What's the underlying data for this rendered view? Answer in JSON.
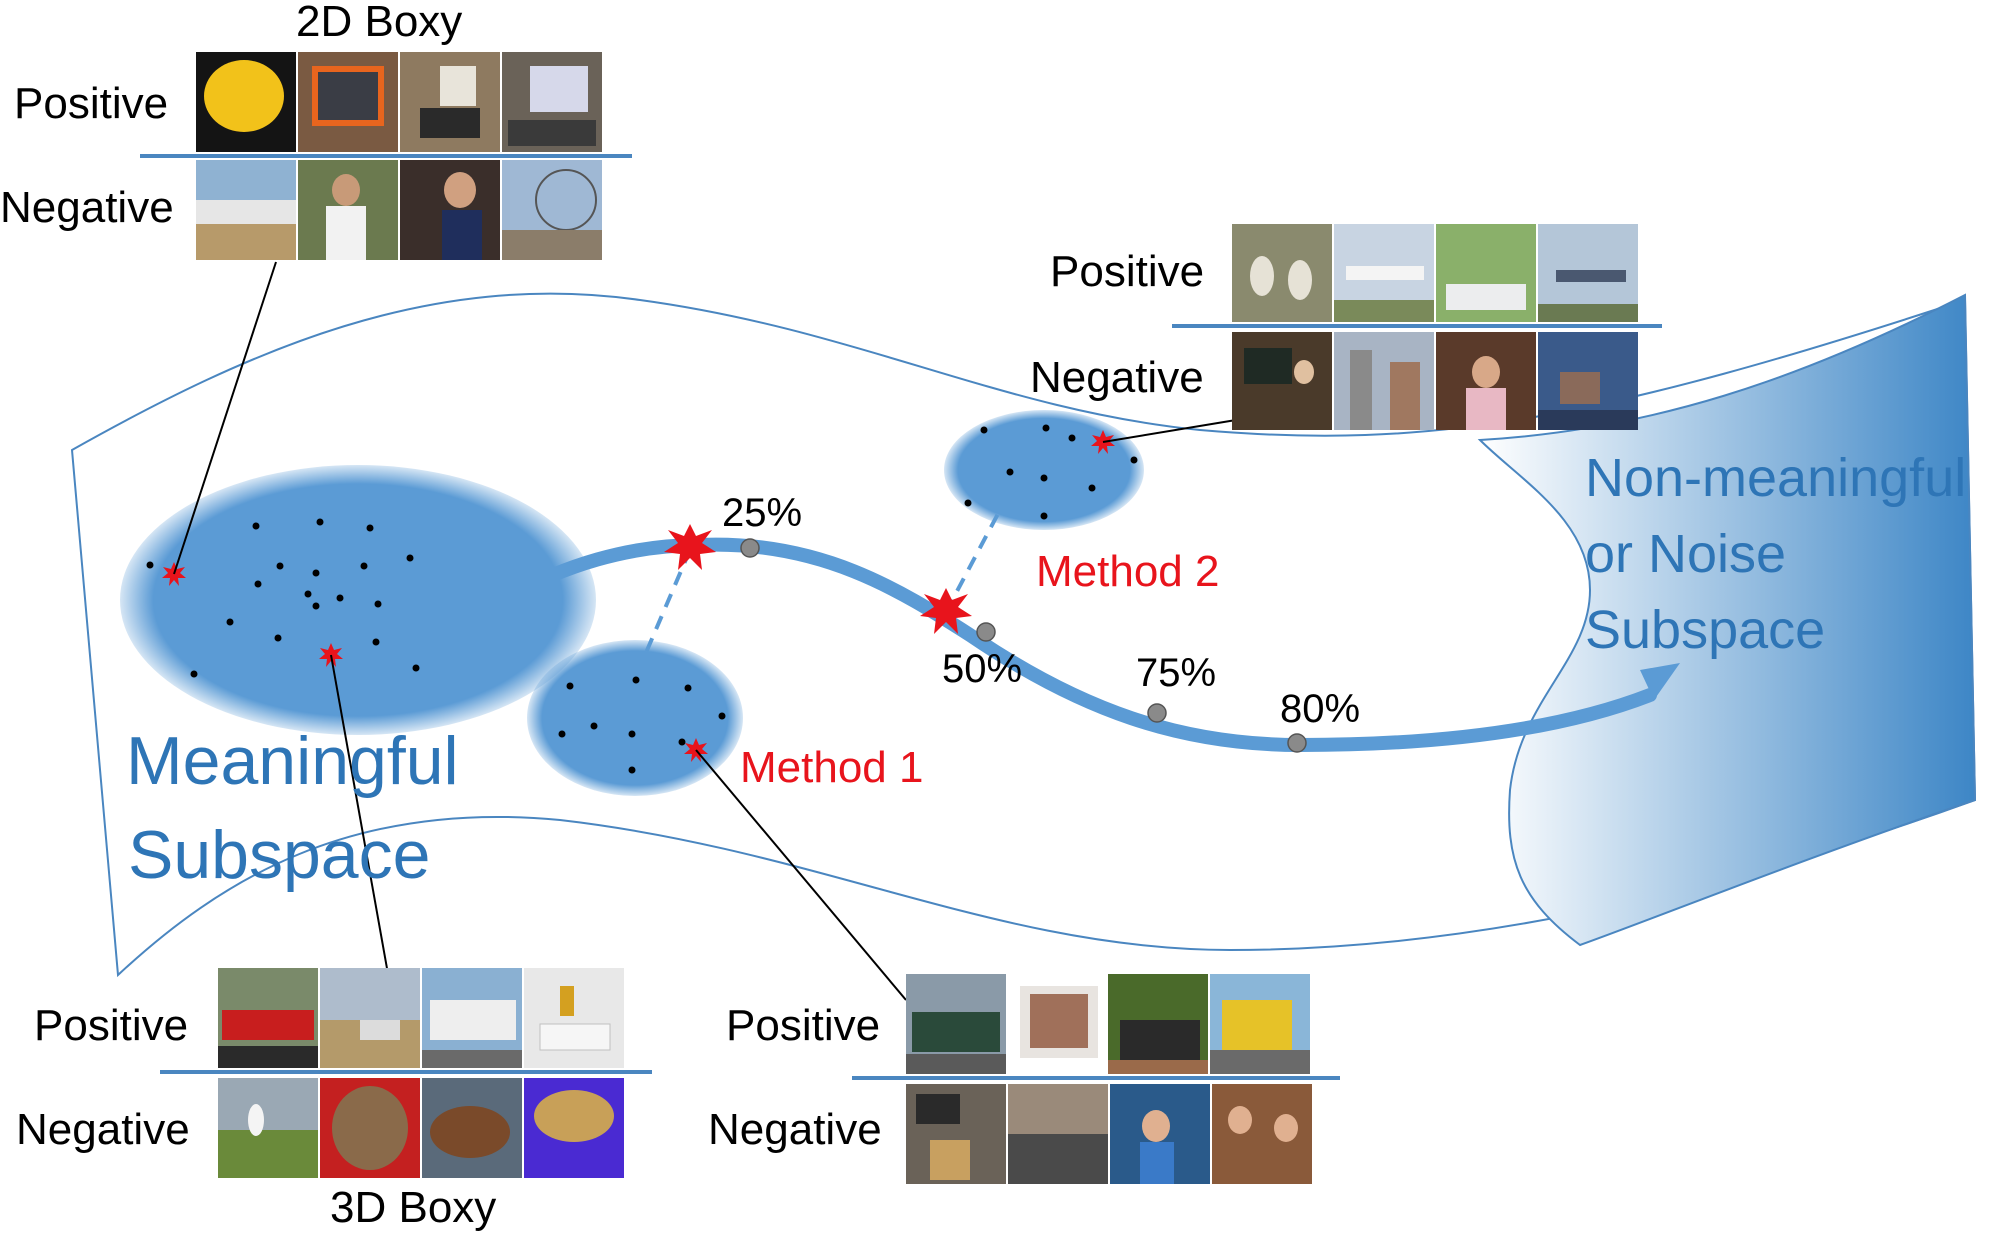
{
  "labels": {
    "meaningful_line1": "Meaningful",
    "meaningful_line2": "Subspace",
    "noise_line1": "Non-meaningful",
    "noise_line2": "or Noise",
    "noise_line3": "Subspace",
    "method1": "Method 1",
    "method2": "Method 2",
    "pct25": "25%",
    "pct50": "50%",
    "pct75": "75%",
    "pct80": "80%"
  },
  "panels": {
    "box2d": {
      "title": "2D Boxy",
      "positive": "Positive",
      "negative": "Negative"
    },
    "box3d": {
      "title": "3D Boxy",
      "positive": "Positive",
      "negative": "Negative"
    },
    "method1": {
      "positive": "Positive",
      "negative": "Negative"
    },
    "method2": {
      "positive": "Positive",
      "negative": "Negative"
    }
  },
  "colors": {
    "blue": "#5b9bd5",
    "blue_dark": "#2e75b6",
    "outline": "#4a86c0",
    "red": "#e8141c",
    "grey_marker": "#8a8a8a"
  }
}
